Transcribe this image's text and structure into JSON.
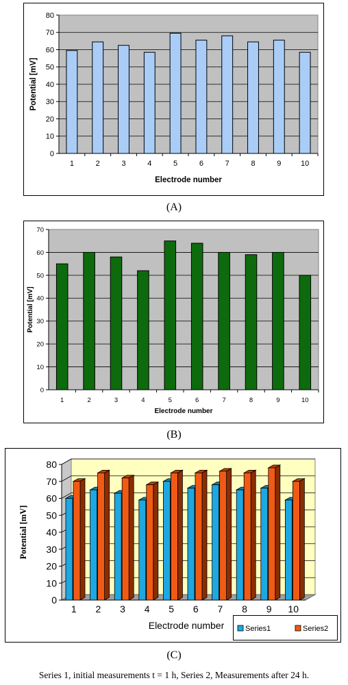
{
  "caption": "Series 1, initial measurements t = 1 h, Series 2, Measurements after 24 h.",
  "panel_labels": [
    "(A)",
    "(B)",
    "(C)"
  ],
  "colors": {
    "series_a": "#a9cdf7",
    "series_b": "#0d6b0d",
    "series1_c": "#1ea7e0",
    "series2_c": "#f05a14",
    "plot_bg_gray": "#c0c0c0",
    "plot_bg_yellow": "#ffffc0"
  },
  "chart_data": [
    {
      "panel": "A",
      "type": "bar",
      "categories": [
        "1",
        "2",
        "3",
        "4",
        "5",
        "6",
        "7",
        "8",
        "9",
        "10"
      ],
      "values": [
        59.5,
        64.5,
        62.5,
        58.5,
        69.5,
        65.5,
        68,
        64.5,
        65.5,
        58.5
      ],
      "xlabel": "Electrode number",
      "ylabel": "Potential [mV]",
      "ylim": [
        0,
        80
      ],
      "yticks": [
        "0",
        "10",
        "20",
        "30",
        "40",
        "50",
        "60",
        "70",
        "80"
      ],
      "grid": true
    },
    {
      "panel": "B",
      "type": "bar",
      "categories": [
        "1",
        "2",
        "3",
        "4",
        "5",
        "6",
        "7",
        "8",
        "9",
        "10"
      ],
      "values": [
        55,
        60,
        58,
        52,
        65,
        64,
        60,
        59,
        60,
        50
      ],
      "xlabel": "Electrode number",
      "ylabel": "Potential [mV]",
      "ylim": [
        0,
        70
      ],
      "yticks": [
        "0",
        "10",
        "20",
        "30",
        "40",
        "50",
        "60",
        "70"
      ],
      "grid": true
    },
    {
      "panel": "C",
      "type": "bar",
      "categories": [
        "1",
        "2",
        "3",
        "4",
        "5",
        "6",
        "7",
        "8",
        "9",
        "10"
      ],
      "series": [
        {
          "name": "Series1",
          "values": [
            60,
            65,
            63,
            59,
            70,
            66,
            68,
            65,
            66,
            59
          ]
        },
        {
          "name": "Series2",
          "values": [
            70,
            75,
            72,
            68,
            75,
            75,
            76,
            75,
            78,
            70
          ]
        }
      ],
      "xlabel": "Electrode number",
      "ylabel": "Potential [mV]",
      "ylim": [
        0,
        80
      ],
      "yticks": [
        "0",
        "10",
        "20",
        "30",
        "40",
        "50",
        "60",
        "70",
        "80"
      ],
      "grid": true,
      "legend": "bottom-right"
    }
  ]
}
